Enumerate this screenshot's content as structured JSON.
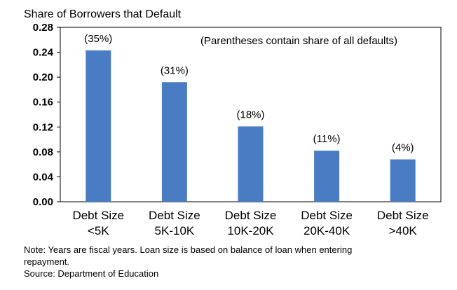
{
  "chart_data": {
    "type": "bar",
    "title": "Share of Borrowers that Default",
    "categories": [
      [
        "Debt Size",
        "<5K"
      ],
      [
        "Debt Size",
        "5K-10K"
      ],
      [
        "Debt Size",
        "10K-20K"
      ],
      [
        "Debt Size",
        "20K-40K"
      ],
      [
        "Debt Size",
        ">40K"
      ]
    ],
    "values": [
      0.243,
      0.192,
      0.121,
      0.082,
      0.068
    ],
    "data_labels": [
      "(35%)",
      "(31%)",
      "(18%)",
      "(11%)",
      "(4%)"
    ],
    "annotation": "(Parentheses contain share of all defaults)",
    "ylim": [
      0,
      0.28
    ],
    "yticks": [
      "0.00",
      "0.04",
      "0.08",
      "0.12",
      "0.16",
      "0.20",
      "0.24",
      "0.28"
    ],
    "grid": false,
    "bar_color": "#4a7cc4"
  },
  "notes": {
    "line1": "Note: Years are fiscal years. Loan size is based on balance of loan when entering",
    "line2": "repayment.",
    "source": "Source: Department of Education"
  }
}
